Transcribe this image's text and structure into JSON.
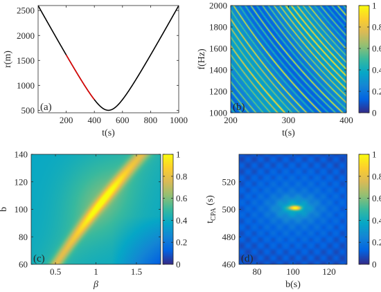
{
  "colorbar_ticks": [
    "0",
    "0.2",
    "0.4",
    "0.6",
    "0.8",
    "1"
  ],
  "colors": {
    "axis": "#262626",
    "curve": "#000000",
    "segment": "#e00000"
  },
  "chart_data": [
    {
      "panel": "(a)",
      "type": "line",
      "xlabel": "t(s)",
      "ylabel": "r(m)",
      "xlim": [
        0,
        1000
      ],
      "ylim": [
        450,
        2600
      ],
      "xticks": [
        200,
        400,
        600,
        800,
        1000
      ],
      "yticks": [
        500,
        1000,
        1500,
        2000,
        2500
      ],
      "series": [
        {
          "color": "#000000",
          "model": "range",
          "t_cpa": 500,
          "r_min": 500,
          "speed": 5.1,
          "x_range": [
            0,
            1000
          ]
        },
        {
          "color": "#e00000",
          "model": "range",
          "t_cpa": 500,
          "r_min": 500,
          "speed": 5.1,
          "x_range": [
            200,
            400
          ]
        }
      ]
    },
    {
      "panel": "(b)",
      "type": "heatmap",
      "xlabel": "t(s)",
      "ylabel": "f(Hz)",
      "xlim": [
        200,
        400
      ],
      "ylim": [
        1000,
        2000
      ],
      "xticks": [
        200,
        300,
        400
      ],
      "yticks": [
        1000,
        1200,
        1400,
        1600,
        1800,
        2000
      ],
      "colorbar": [
        0,
        1
      ],
      "pattern": "diagonal striations descending with time"
    },
    {
      "panel": "(c)",
      "type": "heatmap",
      "xlabel": "β",
      "ylabel": "b",
      "xlim": [
        0.2,
        1.8
      ],
      "ylim": [
        60,
        140
      ],
      "xticks": [
        0.5,
        1,
        1.5
      ],
      "yticks": [
        60,
        80,
        100,
        120,
        140
      ],
      "colorbar": [
        0,
        1
      ],
      "peak": {
        "beta": 1.05,
        "b": 107
      },
      "ridge": "b = 100 * beta^0.75"
    },
    {
      "panel": "(d)",
      "type": "heatmap",
      "xlabel": "b(s)",
      "ylabel": "t_CPA (s)",
      "xlim": [
        70,
        130
      ],
      "ylim": [
        460,
        540
      ],
      "xticks": [
        80,
        100,
        120
      ],
      "yticks": [
        460,
        480,
        500,
        520
      ],
      "colorbar": [
        0,
        1
      ],
      "peak": {
        "b": 101,
        "t_cpa": 501
      }
    }
  ]
}
